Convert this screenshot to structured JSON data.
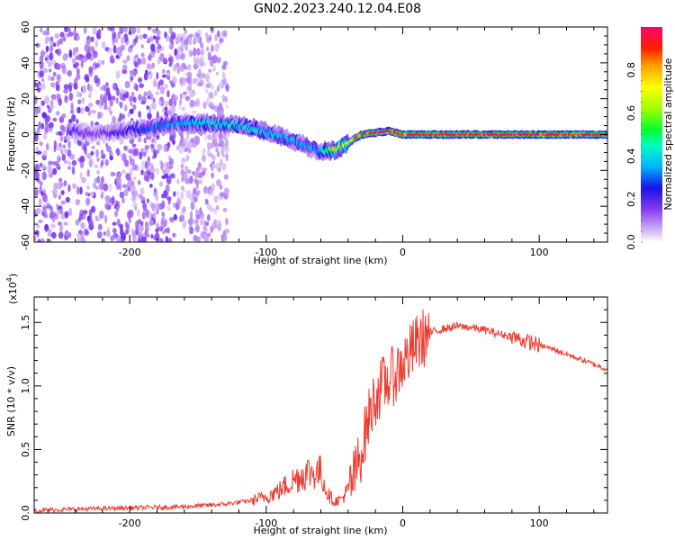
{
  "title": "GN02.2023.240.12.04.E08",
  "colors": {
    "snr_line": "#ee3b30",
    "axes": "#000000",
    "spectrogram_palette": [
      "#dcc8f6",
      "#a06cf0",
      "#6a00ee",
      "#1a10e8",
      "#00c8ff",
      "#00ff40",
      "#c8ff00",
      "#ffa000",
      "#ff2000",
      "#ff0070"
    ]
  },
  "chart_data": [
    {
      "type": "heatmap",
      "xlabel": "Height of straight line (km)",
      "ylabel": "Frequency (Hz)",
      "xlim": [
        -270,
        150
      ],
      "ylim": [
        -60,
        60
      ],
      "x_ticks": [
        -200,
        -100,
        0,
        100
      ],
      "x_tick_labels": [
        "-200",
        "-100",
        "0",
        "100"
      ],
      "y_ticks": [
        -60,
        -40,
        -20,
        0,
        20,
        40,
        60
      ],
      "y_tick_labels": [
        "-60",
        "-40",
        "-20",
        "0",
        "20",
        "40",
        "60"
      ],
      "colorbar": {
        "label": "Normalized spectral amplitude",
        "range": [
          0,
          1
        ],
        "ticks": [
          0.0,
          0.2,
          0.4,
          0.6,
          0.8
        ],
        "tick_labels": [
          "0.0",
          "0.2",
          "0.4",
          "0.6",
          "0.8"
        ]
      },
      "ridge": {
        "x": [
          -240,
          -225,
          -165,
          -130,
          -110,
          -90,
          -75,
          -62,
          -50,
          -40,
          -35,
          -30,
          -20,
          -10,
          0,
          20,
          60,
          100,
          150
        ],
        "y": [
          2,
          0,
          6,
          6,
          4,
          -1,
          -5,
          -9,
          -9,
          -5,
          -2,
          0,
          1,
          2,
          0,
          0,
          0,
          0,
          0
        ],
        "amplitude": [
          0.18,
          0.15,
          0.35,
          0.4,
          0.4,
          0.35,
          0.35,
          0.3,
          0.6,
          0.65,
          0.8,
          0.9,
          0.9,
          0.95,
          0.95,
          0.95,
          0.95,
          0.95,
          0.95
        ]
      }
    },
    {
      "type": "line",
      "xlabel": "Height of straight line (km)",
      "ylabel": "SNR (10 * v/v)",
      "y_scale_label": "(x10",
      "y_scale_exponent": "4",
      "xlim": [
        -270,
        150
      ],
      "ylim": [
        0,
        17000
      ],
      "x_ticks": [
        -200,
        -100,
        0,
        100
      ],
      "x_tick_labels": [
        "-200",
        "-100",
        "0",
        "100"
      ],
      "y_ticks": [
        0,
        5000,
        10000,
        15000
      ],
      "y_tick_labels": [
        "0.0",
        "0.5",
        "1.0",
        "1.5"
      ],
      "series": [
        {
          "x": [
            -270,
            -240,
            -200,
            -160,
            -130,
            -110,
            -100,
            -90,
            -80,
            -70,
            -60,
            -55,
            -50,
            -45,
            -40,
            -35,
            -30,
            -25,
            -20,
            -15,
            -10,
            -5,
            0,
            5,
            10,
            20,
            30,
            40,
            50,
            60,
            70,
            80,
            90,
            95,
            100,
            110,
            120,
            130,
            140,
            150
          ],
          "y": [
            200,
            300,
            400,
            500,
            700,
            1000,
            1300,
            1800,
            2600,
            3200,
            3200,
            1500,
            900,
            1100,
            1800,
            3000,
            5000,
            7500,
            9200,
            10000,
            10500,
            11000,
            11800,
            12500,
            13300,
            14200,
            14500,
            14700,
            14600,
            14400,
            14100,
            13900,
            13500,
            13400,
            13200,
            12900,
            12500,
            12100,
            11700,
            11300
          ]
        }
      ]
    }
  ]
}
